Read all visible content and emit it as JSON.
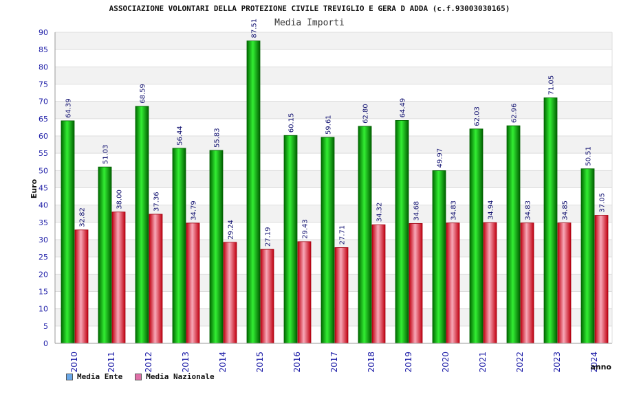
{
  "chart_data": {
    "type": "bar",
    "title": "ASSOCIAZIONE VOLONTARI DELLA PROTEZIONE CIVILE TREVIGLIO E GERA D ADDA (c.f.93003030165)",
    "subtitle": "Media Importi",
    "xlabel": "anno",
    "ylabel": "Euro",
    "ylim": [
      0,
      90
    ],
    "ytick_step": 5,
    "grid": true,
    "legend_position": "bottom-left",
    "categories": [
      "2010",
      "2011",
      "2012",
      "2013",
      "2014",
      "2015",
      "2016",
      "2017",
      "2018",
      "2019",
      "2020",
      "2021",
      "2022",
      "2023",
      "2024"
    ],
    "series": [
      {
        "name": "Media Ente",
        "color": "#00b000",
        "legend_color": "#6aa8e8",
        "values": [
          64.39,
          51.03,
          68.59,
          56.44,
          55.83,
          87.51,
          60.15,
          59.61,
          62.8,
          64.49,
          49.97,
          62.03,
          62.96,
          71.05,
          50.51
        ]
      },
      {
        "name": "Media Nazionale",
        "color": "#e01020",
        "legend_color": "#e070a8",
        "values": [
          32.82,
          38.0,
          37.36,
          34.79,
          29.24,
          27.19,
          29.43,
          27.71,
          34.32,
          34.68,
          34.83,
          34.94,
          34.83,
          34.85,
          37.05
        ]
      }
    ]
  }
}
